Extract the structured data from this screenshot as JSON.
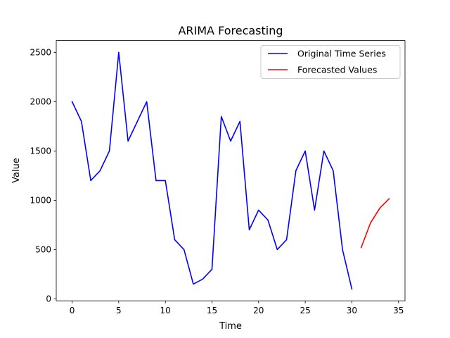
{
  "chart_data": {
    "type": "line",
    "title": "ARIMA Forecasting",
    "xlabel": "Time",
    "ylabel": "Value",
    "xlim": [
      -1.7,
      35.7
    ],
    "ylim": [
      -20,
      2620
    ],
    "xticks": [
      0,
      5,
      10,
      15,
      20,
      25,
      30,
      35
    ],
    "yticks": [
      0,
      500,
      1000,
      1500,
      2000,
      2500
    ],
    "grid": false,
    "legend_position": "top-right",
    "series": [
      {
        "name": "Original Time Series",
        "color": "#0000ff",
        "x": [
          0,
          1,
          2,
          3,
          4,
          5,
          6,
          7,
          8,
          9,
          10,
          11,
          12,
          13,
          14,
          15,
          16,
          17,
          18,
          19,
          20,
          21,
          22,
          23,
          24,
          25,
          26,
          27,
          28,
          29,
          30
        ],
        "y": [
          2000,
          1800,
          1200,
          1300,
          1500,
          2500,
          1600,
          1800,
          2000,
          1200,
          1200,
          600,
          500,
          150,
          200,
          300,
          1850,
          1600,
          1800,
          700,
          900,
          800,
          500,
          600,
          1300,
          1500,
          900,
          1500,
          1300,
          500,
          100
        ]
      },
      {
        "name": "Forecasted Values",
        "color": "#ff0000",
        "x": [
          31,
          32,
          33,
          34
        ],
        "y": [
          520,
          770,
          920,
          1015
        ]
      }
    ]
  }
}
